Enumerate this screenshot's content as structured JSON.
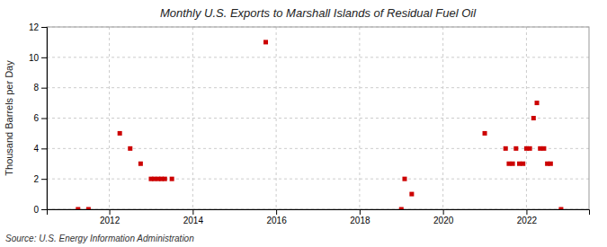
{
  "chart_data": {
    "type": "scatter",
    "title": "Monthly U.S. Exports to Marshall Islands of Residual Fuel Oil",
    "ylabel": "Thousand Barrels per Day",
    "annotations": [
      "Source: U.S. Energy Information Administration"
    ],
    "x": [
      2011.25,
      2011.5,
      2012.25,
      2012.5,
      2012.75,
      2013.0,
      2013.08,
      2013.17,
      2013.25,
      2013.33,
      2013.5,
      2015.75,
      2019.0,
      2019.08,
      2019.25,
      2021.0,
      2021.5,
      2021.58,
      2021.67,
      2021.75,
      2021.83,
      2021.92,
      2022.0,
      2022.08,
      2022.17,
      2022.25,
      2022.33,
      2022.42,
      2022.5,
      2022.58,
      2022.83
    ],
    "values": [
      0,
      0,
      5,
      4,
      3,
      2,
      2,
      2,
      2,
      2,
      2,
      11,
      0,
      2,
      1,
      5,
      4,
      3,
      3,
      4,
      3,
      3,
      4,
      4,
      6,
      7,
      4,
      4,
      3,
      3,
      0
    ],
    "color": "#cc0000",
    "marker": "square",
    "xlim": [
      2010.5,
      2023.5
    ],
    "xticks": [
      2012,
      2014,
      2016,
      2018,
      2020,
      2022
    ],
    "ylim": [
      0,
      12
    ],
    "yticks": [
      0,
      2,
      4,
      6,
      8,
      10,
      12
    ],
    "grid": true
  }
}
